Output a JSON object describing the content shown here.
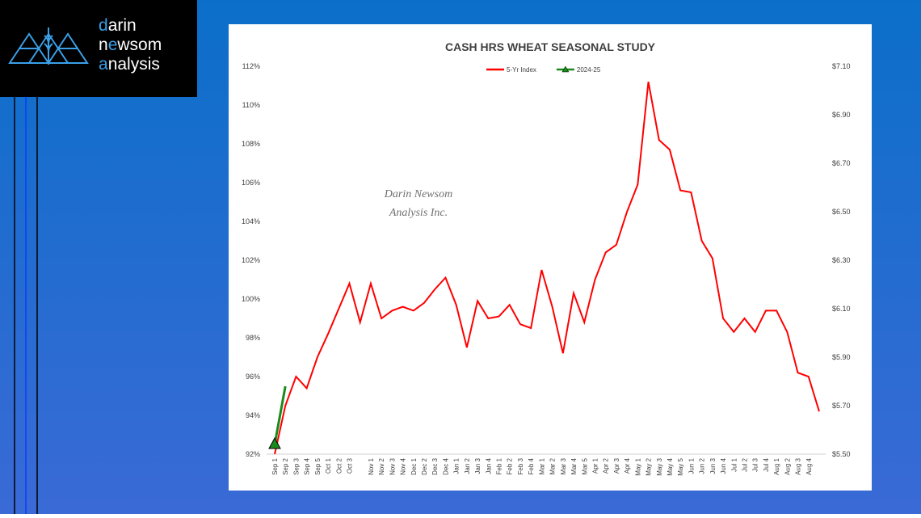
{
  "logo": {
    "lines": [
      [
        "d",
        "arin"
      ],
      [
        "n",
        "e",
        "wsom"
      ],
      [
        "a",
        "nalysis"
      ]
    ]
  },
  "watermark": [
    "Darin Newsom",
    "Analysis Inc."
  ],
  "chart_data": {
    "type": "line",
    "title": "CASH HRS WHEAT SEASONAL STUDY",
    "categories": [
      "Sep 1",
      "Sep 2",
      "Sep 3",
      "Sep 4",
      "Sep 5",
      "Oct 1",
      "Oct 2",
      "Oct 3",
      null,
      "Nov 1",
      "Nov 2",
      "Nov 3",
      "Nov 4",
      "Dec 1",
      "Dec 2",
      "Dec 3",
      "Dec 4",
      "Jan 1",
      "Jan 2",
      "Jan 3",
      "Jan 4",
      "Feb 1",
      "Feb 2",
      "Feb 3",
      "Feb 4",
      "Mar 1",
      "Mar 2",
      "Mar 3",
      "Mar 4",
      "Mar 5",
      "Apr 1",
      "Apr 2",
      "Apr 3",
      "Apr 4",
      "May 1",
      "May 2",
      "May 3",
      "May 4",
      "May 5",
      "Jun 1",
      "Jun 2",
      "Jun 3",
      "Jun 4",
      "Jul 1",
      "Jul 2",
      "Jul 3",
      "Jul 4",
      "Aug 1",
      "Aug 2",
      "Aug 3",
      "Aug 4",
      null
    ],
    "series": [
      {
        "name": "5-Yr Index",
        "color": "#ff0000",
        "values": [
          92.0,
          94.5,
          96.0,
          95.4,
          97.0,
          98.2,
          99.5,
          100.8,
          98.8,
          100.8,
          99.0,
          99.4,
          99.6,
          99.4,
          99.8,
          100.5,
          101.1,
          99.7,
          97.5,
          99.9,
          99.0,
          99.1,
          99.7,
          98.7,
          98.5,
          101.5,
          99.6,
          97.2,
          100.3,
          98.8,
          101.0,
          102.4,
          102.8,
          104.5,
          105.9,
          111.2,
          108.2,
          107.7,
          105.6,
          105.5,
          103.0,
          102.1,
          99.0,
          98.3,
          99.0,
          98.3,
          99.4,
          99.4,
          98.3,
          96.2,
          96.0,
          94.2
        ]
      },
      {
        "name": "2024-25",
        "color": "#1a8a1a",
        "axis": "y2",
        "values": [
          5.54,
          5.78,
          null,
          null,
          null,
          null,
          null,
          null,
          null,
          null,
          null,
          null,
          null,
          null,
          null,
          null,
          null,
          null,
          null,
          null,
          null,
          null,
          null,
          null,
          null,
          null,
          null,
          null,
          null,
          null,
          null,
          null,
          null,
          null,
          null,
          null,
          null,
          null,
          null,
          null,
          null,
          null,
          null,
          null,
          null,
          null,
          null,
          null,
          null,
          null,
          null,
          null
        ]
      }
    ],
    "ylim": [
      92,
      112
    ],
    "yticks": [
      {
        "value": 92,
        "label": "92%"
      },
      {
        "value": 94,
        "label": "94%"
      },
      {
        "value": 96,
        "label": "96%"
      },
      {
        "value": 98,
        "label": "98%"
      },
      {
        "value": 100,
        "label": "100%"
      },
      {
        "value": 102,
        "label": "102%"
      },
      {
        "value": 104,
        "label": "104%"
      },
      {
        "value": 106,
        "label": "106%"
      },
      {
        "value": 108,
        "label": "108%"
      },
      {
        "value": 110,
        "label": "110%"
      },
      {
        "value": 112,
        "label": "112%"
      }
    ],
    "y2lim": [
      5.5,
      7.1
    ],
    "y2ticks": [
      {
        "value": 5.5,
        "label": "$5.50"
      },
      {
        "value": 5.7,
        "label": "$5.70"
      },
      {
        "value": 5.9,
        "label": "$5.90"
      },
      {
        "value": 6.1,
        "label": "$6.10"
      },
      {
        "value": 6.3,
        "label": "$6.30"
      },
      {
        "value": 6.5,
        "label": "$6.50"
      },
      {
        "value": 6.7,
        "label": "$6.70"
      },
      {
        "value": 6.9,
        "label": "$6.90"
      },
      {
        "value": 7.1,
        "label": "$7.10"
      }
    ],
    "legend": "top"
  }
}
